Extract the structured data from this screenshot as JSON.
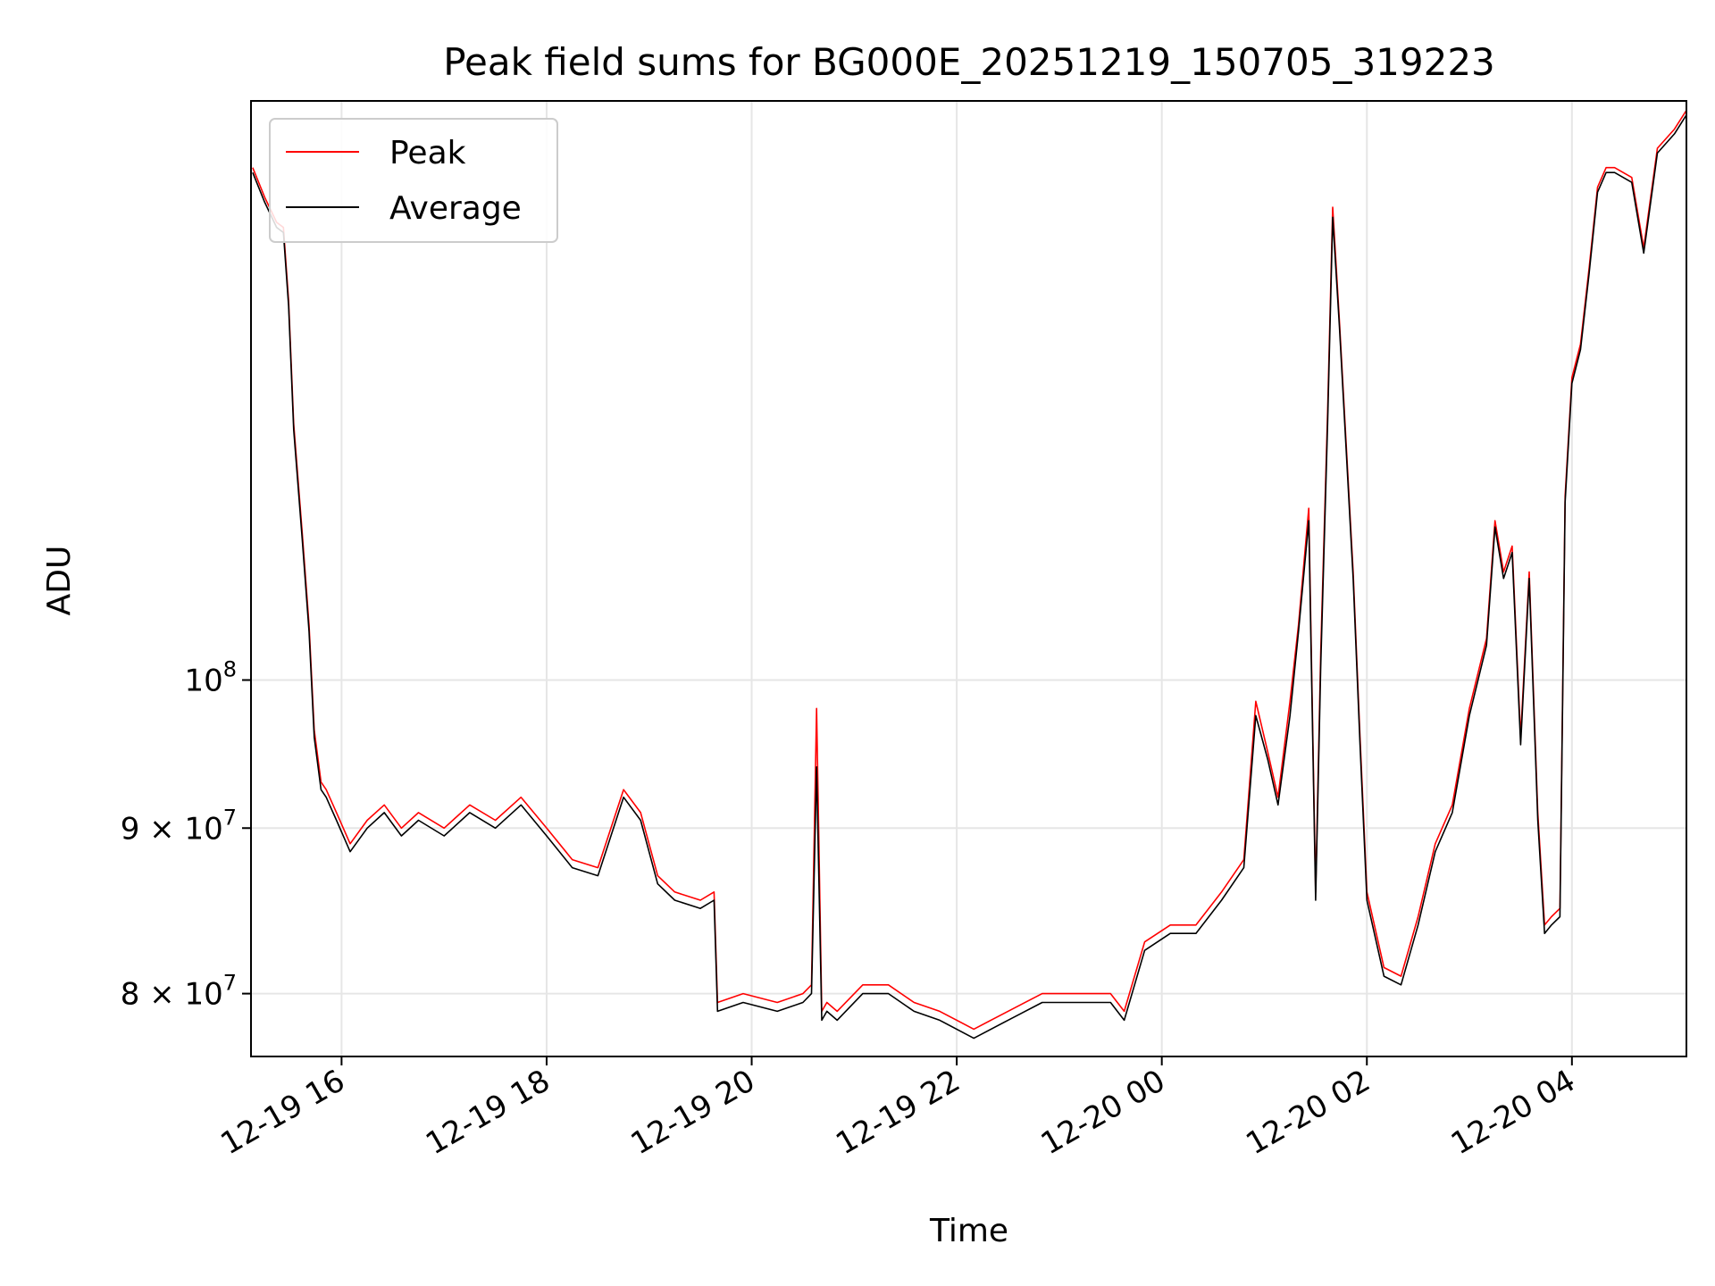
{
  "chart_data": {
    "type": "line",
    "title": "Peak field sums for BG000E_20251219_150705_319223",
    "xlabel": "Time",
    "ylabel": "ADU",
    "yscale": "log",
    "grid": true,
    "legend_position": "top-left",
    "xlim": [
      "2025-12-19 15:07",
      "2025-12-20 05:07"
    ],
    "ylim": [
      76500000,
      151000000
    ],
    "x_ticks": [
      {
        "value": "2025-12-19 16:00",
        "label": "12-19 16"
      },
      {
        "value": "2025-12-19 18:00",
        "label": "12-19 18"
      },
      {
        "value": "2025-12-19 20:00",
        "label": "12-19 20"
      },
      {
        "value": "2025-12-19 22:00",
        "label": "12-19 22"
      },
      {
        "value": "2025-12-20 00:00",
        "label": "12-20 00"
      },
      {
        "value": "2025-12-20 02:00",
        "label": "12-20 02"
      },
      {
        "value": "2025-12-20 04:00",
        "label": "12-20 04"
      }
    ],
    "y_ticks": [
      {
        "value": 80000000,
        "label": "8 × 10",
        "exp": "7"
      },
      {
        "value": 90000000,
        "label": "9 × 10",
        "exp": "7"
      },
      {
        "value": 100000000,
        "label": "10",
        "exp": "8"
      }
    ],
    "series": [
      {
        "name": "Peak",
        "color": "#ff0000",
        "x": [
          "2025-12-19 15:08",
          "2025-12-19 15:15",
          "2025-12-19 15:22",
          "2025-12-19 15:26",
          "2025-12-19 15:29",
          "2025-12-19 15:32",
          "2025-12-19 15:37",
          "2025-12-19 15:41",
          "2025-12-19 15:44",
          "2025-12-19 15:48",
          "2025-12-19 15:51",
          "2025-12-19 15:53",
          "2025-12-19 15:57",
          "2025-12-19 16:05",
          "2025-12-19 16:15",
          "2025-12-19 16:25",
          "2025-12-19 16:35",
          "2025-12-19 16:45",
          "2025-12-19 17:00",
          "2025-12-19 17:15",
          "2025-12-19 17:30",
          "2025-12-19 17:45",
          "2025-12-19 18:00",
          "2025-12-19 18:15",
          "2025-12-19 18:30",
          "2025-12-19 18:45",
          "2025-12-19 18:55",
          "2025-12-19 19:05",
          "2025-12-19 19:15",
          "2025-12-19 19:30",
          "2025-12-19 19:38",
          "2025-12-19 19:40",
          "2025-12-19 19:55",
          "2025-12-19 20:15",
          "2025-12-19 20:30",
          "2025-12-19 20:35",
          "2025-12-19 20:38",
          "2025-12-19 20:41",
          "2025-12-19 20:44",
          "2025-12-19 20:50",
          "2025-12-19 21:05",
          "2025-12-19 21:20",
          "2025-12-19 21:35",
          "2025-12-19 21:50",
          "2025-12-19 22:10",
          "2025-12-19 22:30",
          "2025-12-19 22:50",
          "2025-12-19 23:10",
          "2025-12-19 23:30",
          "2025-12-19 23:38",
          "2025-12-19 23:50",
          "2025-12-20 00:05",
          "2025-12-20 00:20",
          "2025-12-20 00:35",
          "2025-12-20 00:48",
          "2025-12-20 00:55",
          "2025-12-20 01:02",
          "2025-12-20 01:08",
          "2025-12-20 01:15",
          "2025-12-20 01:20",
          "2025-12-20 01:26",
          "2025-12-20 01:30",
          "2025-12-20 01:33",
          "2025-12-20 01:37",
          "2025-12-20 01:40",
          "2025-12-20 01:44",
          "2025-12-20 01:48",
          "2025-12-20 01:52",
          "2025-12-20 01:56",
          "2025-12-20 02:00",
          "2025-12-20 02:10",
          "2025-12-20 02:20",
          "2025-12-20 02:30",
          "2025-12-20 02:40",
          "2025-12-20 02:50",
          "2025-12-20 03:00",
          "2025-12-20 03:10",
          "2025-12-20 03:15",
          "2025-12-20 03:20",
          "2025-12-20 03:25",
          "2025-12-20 03:30",
          "2025-12-20 03:35",
          "2025-12-20 03:40",
          "2025-12-20 03:44",
          "2025-12-20 03:48",
          "2025-12-20 03:53",
          "2025-12-20 03:56",
          "2025-12-20 04:00",
          "2025-12-20 04:05",
          "2025-12-20 04:10",
          "2025-12-20 04:15",
          "2025-12-20 04:20",
          "2025-12-20 04:25",
          "2025-12-20 04:35",
          "2025-12-20 04:42",
          "2025-12-20 04:50",
          "2025-12-20 05:00",
          "2025-12-20 05:07"
        ],
        "values": [
          144000000,
          141000000,
          138500000,
          138000000,
          131000000,
          120000000,
          111000000,
          104000000,
          96500000,
          93000000,
          92500000,
          92000000,
          91000000,
          89000000,
          90500000,
          91500000,
          90000000,
          91000000,
          90000000,
          91500000,
          90500000,
          92000000,
          90000000,
          88000000,
          87500000,
          92500000,
          91000000,
          87000000,
          86000000,
          85500000,
          86000000,
          79500000,
          80000000,
          79500000,
          80000000,
          80500000,
          98000000,
          79000000,
          79500000,
          79000000,
          80500000,
          80500000,
          79500000,
          79000000,
          78000000,
          79000000,
          80000000,
          80000000,
          80000000,
          79000000,
          83000000,
          84000000,
          84000000,
          86000000,
          88000000,
          98500000,
          95000000,
          92000000,
          98500000,
          104000000,
          113000000,
          86000000,
          102000000,
          121000000,
          140000000,
          129000000,
          118000000,
          108000000,
          96000000,
          86000000,
          81500000,
          81000000,
          84500000,
          89000000,
          91500000,
          98000000,
          103000000,
          112000000,
          108000000,
          110000000,
          96000000,
          108000000,
          91000000,
          84000000,
          84500000,
          85000000,
          114000000,
          124000000,
          127000000,
          134000000,
          142000000,
          144000000,
          144000000,
          143000000,
          136000000,
          146000000,
          148000000,
          150000000
        ]
      },
      {
        "name": "Average",
        "color": "#000000",
        "x": [
          "2025-12-19 15:08",
          "2025-12-19 15:15",
          "2025-12-19 15:22",
          "2025-12-19 15:26",
          "2025-12-19 15:29",
          "2025-12-19 15:32",
          "2025-12-19 15:37",
          "2025-12-19 15:41",
          "2025-12-19 15:44",
          "2025-12-19 15:48",
          "2025-12-19 15:51",
          "2025-12-19 15:53",
          "2025-12-19 15:57",
          "2025-12-19 16:05",
          "2025-12-19 16:15",
          "2025-12-19 16:25",
          "2025-12-19 16:35",
          "2025-12-19 16:45",
          "2025-12-19 17:00",
          "2025-12-19 17:15",
          "2025-12-19 17:30",
          "2025-12-19 17:45",
          "2025-12-19 18:00",
          "2025-12-19 18:15",
          "2025-12-19 18:30",
          "2025-12-19 18:45",
          "2025-12-19 18:55",
          "2025-12-19 19:05",
          "2025-12-19 19:15",
          "2025-12-19 19:30",
          "2025-12-19 19:38",
          "2025-12-19 19:40",
          "2025-12-19 19:55",
          "2025-12-19 20:15",
          "2025-12-19 20:30",
          "2025-12-19 20:35",
          "2025-12-19 20:38",
          "2025-12-19 20:41",
          "2025-12-19 20:44",
          "2025-12-19 20:50",
          "2025-12-19 21:05",
          "2025-12-19 21:20",
          "2025-12-19 21:35",
          "2025-12-19 21:50",
          "2025-12-19 22:10",
          "2025-12-19 22:30",
          "2025-12-19 22:50",
          "2025-12-19 23:10",
          "2025-12-19 23:30",
          "2025-12-19 23:38",
          "2025-12-19 23:50",
          "2025-12-20 00:05",
          "2025-12-20 00:20",
          "2025-12-20 00:35",
          "2025-12-20 00:48",
          "2025-12-20 00:55",
          "2025-12-20 01:02",
          "2025-12-20 01:08",
          "2025-12-20 01:15",
          "2025-12-20 01:20",
          "2025-12-20 01:26",
          "2025-12-20 01:30",
          "2025-12-20 01:33",
          "2025-12-20 01:37",
          "2025-12-20 01:40",
          "2025-12-20 01:44",
          "2025-12-20 01:48",
          "2025-12-20 01:52",
          "2025-12-20 01:56",
          "2025-12-20 02:00",
          "2025-12-20 02:10",
          "2025-12-20 02:20",
          "2025-12-20 02:30",
          "2025-12-20 02:40",
          "2025-12-20 02:50",
          "2025-12-20 03:00",
          "2025-12-20 03:10",
          "2025-12-20 03:15",
          "2025-12-20 03:20",
          "2025-12-20 03:25",
          "2025-12-20 03:30",
          "2025-12-20 03:35",
          "2025-12-20 03:40",
          "2025-12-20 03:44",
          "2025-12-20 03:48",
          "2025-12-20 03:53",
          "2025-12-20 03:56",
          "2025-12-20 04:00",
          "2025-12-20 04:05",
          "2025-12-20 04:10",
          "2025-12-20 04:15",
          "2025-12-20 04:20",
          "2025-12-20 04:25",
          "2025-12-20 04:35",
          "2025-12-20 04:42",
          "2025-12-20 04:50",
          "2025-12-20 05:00",
          "2025-12-20 05:07"
        ],
        "values": [
          143500000,
          140500000,
          138000000,
          137500000,
          130500000,
          119500000,
          110500000,
          103500000,
          96000000,
          92500000,
          92000000,
          91500000,
          90500000,
          88500000,
          90000000,
          91000000,
          89500000,
          90500000,
          89500000,
          91000000,
          90000000,
          91500000,
          89500000,
          87500000,
          87000000,
          92000000,
          90500000,
          86500000,
          85500000,
          85000000,
          85500000,
          79000000,
          79500000,
          79000000,
          79500000,
          80000000,
          94000000,
          78500000,
          79000000,
          78500000,
          80000000,
          80000000,
          79000000,
          78500000,
          77500000,
          78500000,
          79500000,
          79500000,
          79500000,
          78500000,
          82500000,
          83500000,
          83500000,
          85500000,
          87500000,
          97500000,
          94500000,
          91500000,
          97500000,
          103500000,
          112000000,
          85500000,
          101000000,
          120000000,
          139000000,
          128500000,
          117500000,
          107500000,
          95500000,
          85500000,
          81000000,
          80500000,
          84000000,
          88500000,
          91000000,
          97500000,
          102500000,
          111500000,
          107500000,
          109500000,
          95500000,
          107500000,
          90500000,
          83500000,
          84000000,
          84500000,
          113500000,
          123500000,
          126500000,
          133500000,
          141500000,
          143500000,
          143500000,
          142500000,
          135500000,
          145500000,
          147500000,
          149500000
        ]
      }
    ]
  }
}
